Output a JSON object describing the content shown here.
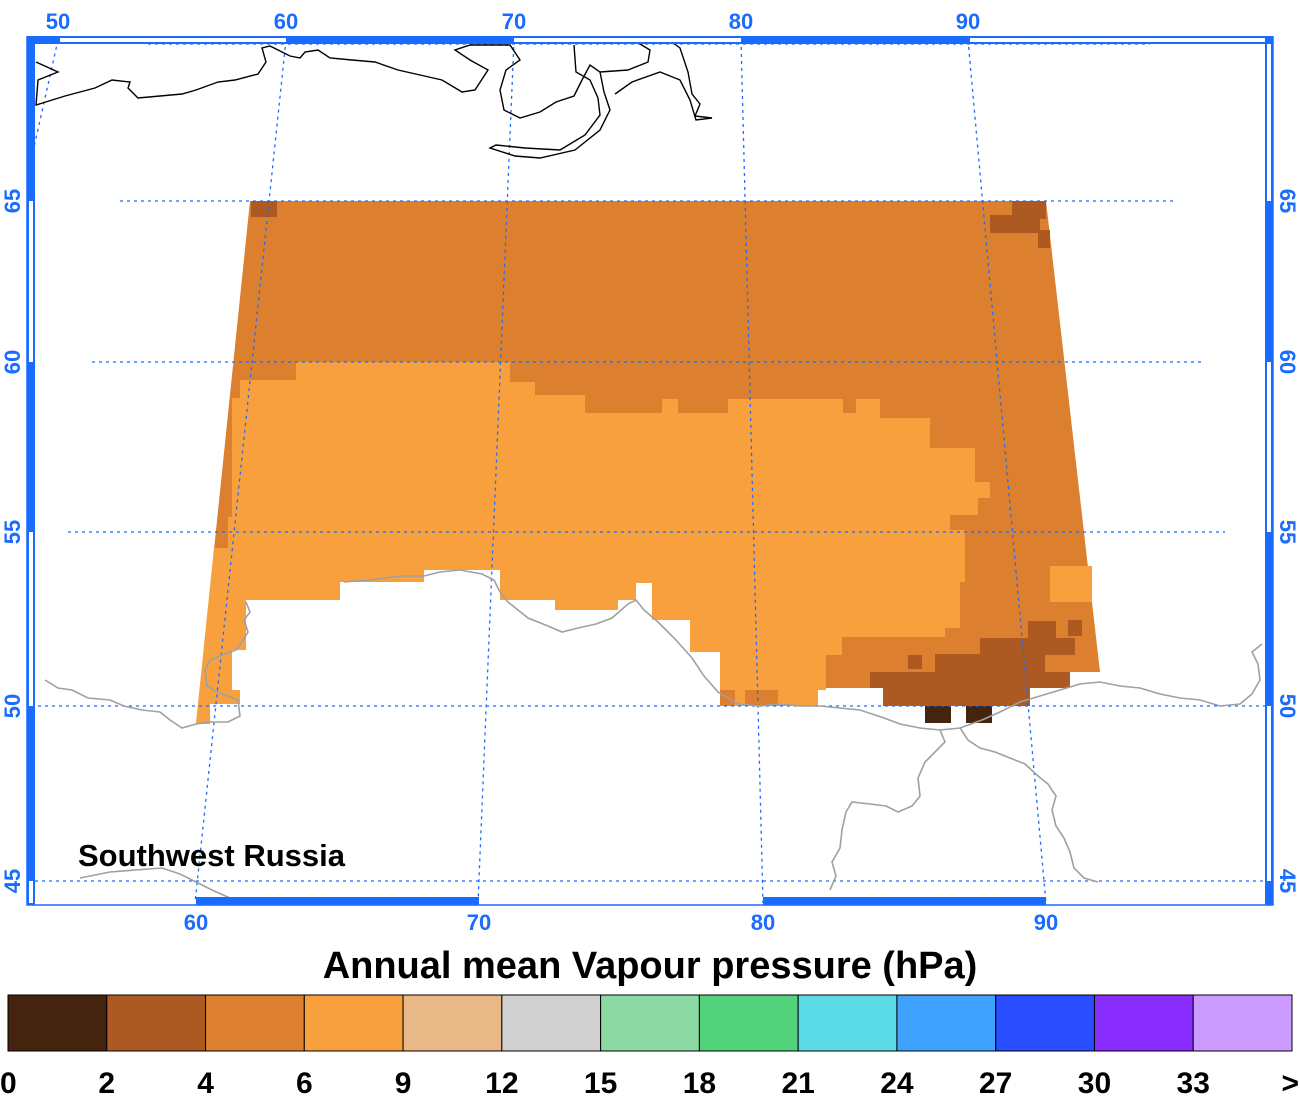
{
  "map": {
    "title": "Annual mean Vapour pressure (hPa)",
    "region_label": "Southwest Russia",
    "top_lon_ticks": [
      "50",
      "60",
      "70",
      "80",
      "90"
    ],
    "bottom_lon_ticks": [
      "60",
      "70",
      "80",
      "90"
    ],
    "lat_ticks": [
      "65",
      "60",
      "55",
      "50",
      "45"
    ],
    "colors": {
      "frame": "#1a6cff",
      "grid": "#1a6cff",
      "class_2_4": "#ad5a22",
      "class_4_6": "#dc7f2f",
      "class_6_9": "#f9a03e",
      "class_0_2": "#45240f"
    }
  },
  "colorbar": {
    "colors": [
      "#45240f",
      "#ad5a22",
      "#dc7f2f",
      "#f9a03e",
      "#e8b887",
      "#d0d0d0",
      "#8cd9a4",
      "#52d27a",
      "#5adbe6",
      "#3fa2ff",
      "#2a4dff",
      "#8a2eff",
      "#cb9bff"
    ],
    "labels": [
      "0",
      "2",
      "4",
      "6",
      "9",
      "12",
      "15",
      "18",
      "21",
      "24",
      "27",
      "30",
      "33",
      ">"
    ]
  }
}
